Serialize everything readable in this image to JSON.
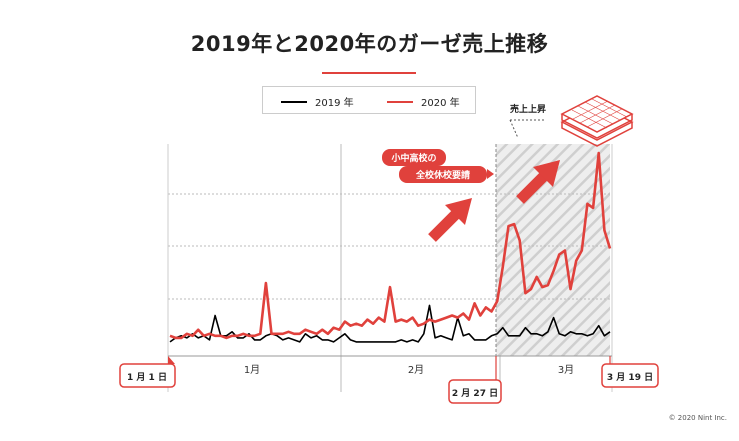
{
  "title": "2019年と2020年のガーゼ売上推移",
  "copyright": "© 2020 Nint Inc.",
  "legend": {
    "s2019": "2019 年",
    "s2020": "2020 年"
  },
  "colors": {
    "s2019": "#000000",
    "s2020": "#e0413c",
    "accent": "#e0413c",
    "hatch": "#cfcfcf"
  },
  "annotations": {
    "surge_label": "売上上昇",
    "school_line1": "小中高校の",
    "school_line2": "全校休校要請"
  },
  "x_axis": {
    "month_labels": [
      "1月",
      "2月",
      "3月"
    ],
    "date_markers": [
      "1 月 1 日",
      "2 月 27 日",
      "3 月 19 日"
    ]
  },
  "chart_data": {
    "type": "line",
    "title": "2019年と2020年のガーゼ売上推移",
    "x": "days from 1月1日 to 3月19日 (79 days)",
    "x_range": [
      "1月1日",
      "3月19日"
    ],
    "y_axis_labels_visible": false,
    "grid": true,
    "highlight_period": [
      "2月27日",
      "3月19日"
    ],
    "series": [
      {
        "name": "2019 年",
        "values": [
          2,
          4,
          5,
          4,
          6,
          4,
          5,
          3,
          15,
          5,
          5,
          7,
          4,
          4,
          6,
          3,
          3,
          5,
          6,
          5,
          3,
          4,
          3,
          2,
          6,
          4,
          5,
          3,
          3,
          2,
          4,
          6,
          3,
          2,
          2,
          2,
          2,
          2,
          2,
          2,
          2,
          3,
          2,
          3,
          2,
          6,
          20,
          4,
          5,
          4,
          3,
          14,
          5,
          6,
          3,
          3,
          3,
          5,
          6,
          9,
          5,
          5,
          5,
          9,
          6,
          6,
          5,
          7,
          14,
          6,
          5,
          7,
          6,
          6,
          5,
          6,
          10,
          5,
          7
        ]
      },
      {
        "name": "2020 年",
        "values": [
          5,
          4,
          4,
          6,
          5,
          8,
          5,
          6,
          5,
          5,
          4,
          5,
          5,
          6,
          5,
          5,
          6,
          31,
          6,
          6,
          6,
          7,
          6,
          6,
          8,
          7,
          6,
          8,
          6,
          9,
          8,
          12,
          10,
          11,
          10,
          13,
          11,
          14,
          12,
          29,
          12,
          13,
          12,
          14,
          10,
          11,
          13,
          12,
          13,
          14,
          15,
          14,
          16,
          13,
          21,
          15,
          19,
          17,
          22,
          39,
          59,
          60,
          52,
          26,
          28,
          34,
          29,
          30,
          37,
          45,
          47,
          28,
          42,
          47,
          70,
          68,
          95,
          57,
          48
        ]
      }
    ]
  }
}
